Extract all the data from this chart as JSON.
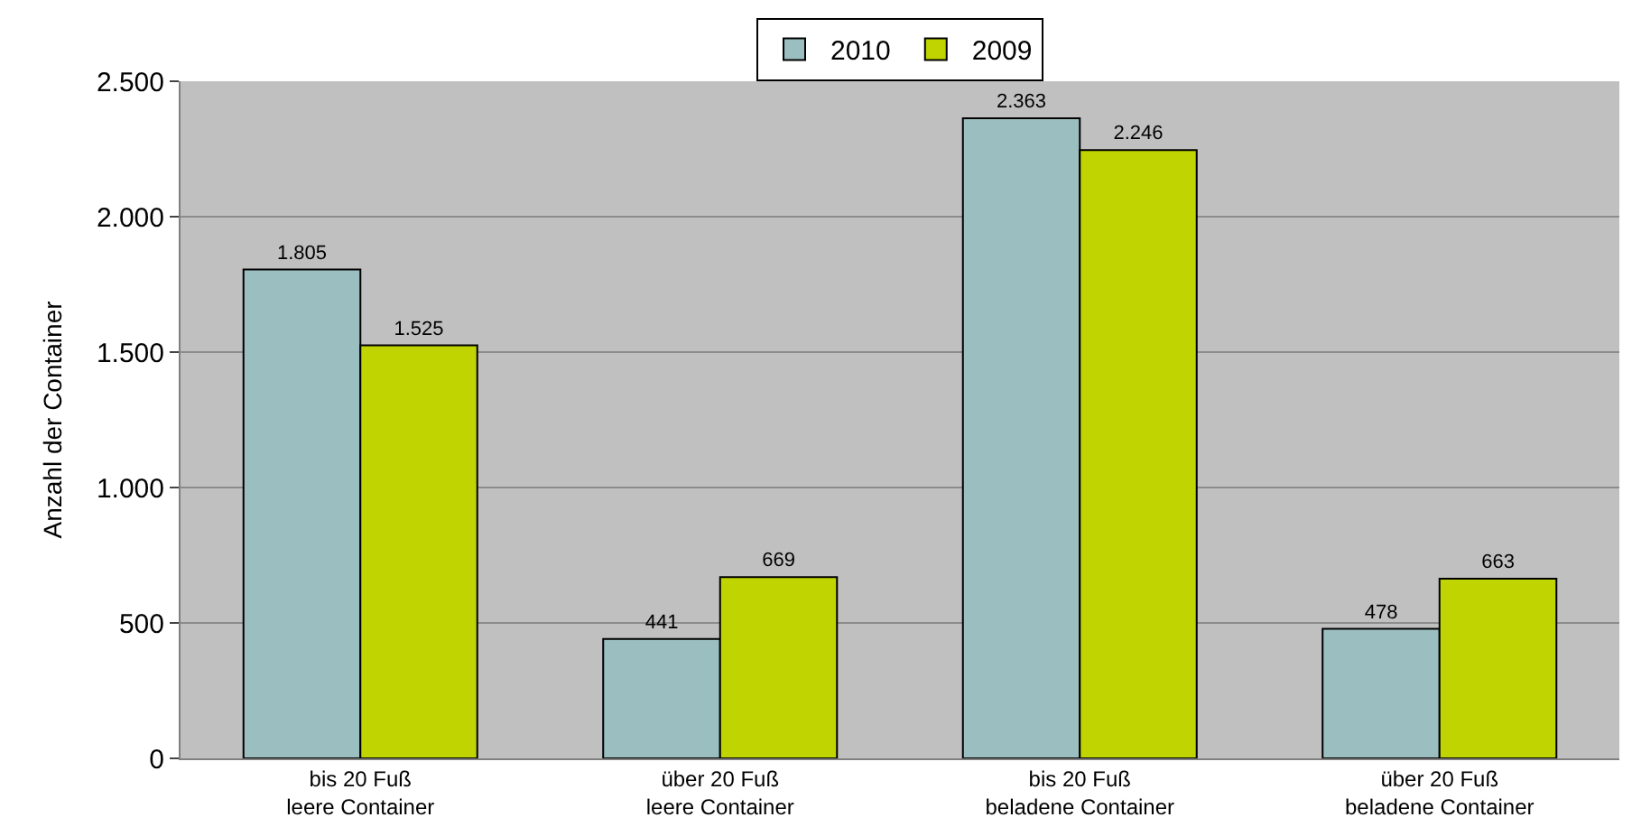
{
  "chart_data": {
    "type": "bar",
    "ylabel": "Anzahl der Container",
    "categories": [
      "bis 20 Fuß\nleere Container",
      "über 20 Fuß\nleere Container",
      "bis 20 Fuß\nbeladene Container",
      "über 20 Fuß\nbeladene Container"
    ],
    "series": [
      {
        "name": "2010",
        "color": "#9bbfc0",
        "values": [
          1805,
          441,
          2363,
          478
        ],
        "value_labels": [
          "1.805",
          "441",
          "2.363",
          "478"
        ]
      },
      {
        "name": "2009",
        "color": "#bfd400",
        "values": [
          1525,
          669,
          2246,
          663
        ],
        "value_labels": [
          "1.525",
          "669",
          "2.246",
          "663"
        ]
      }
    ],
    "ylim": [
      0,
      2500
    ],
    "yticks": [
      0,
      {
        "value": 500,
        "label": "500"
      },
      {
        "value": 1000,
        "label": "1.000"
      },
      {
        "value": 1500,
        "label": "1.500"
      },
      {
        "value": 2000,
        "label": "2.000"
      },
      {
        "value": 2500,
        "label": "2.500"
      }
    ],
    "grid": "y",
    "legend": "top"
  }
}
